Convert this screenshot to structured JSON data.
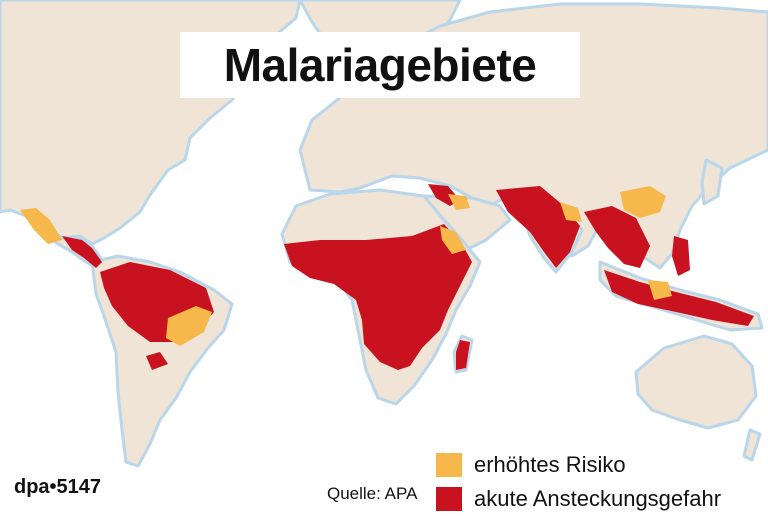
{
  "title": "Malariagebiete",
  "legend": {
    "items": [
      {
        "label": "erhöhtes Risiko",
        "color": "#f6b84a"
      },
      {
        "label": "akute Ansteckungsgefahr",
        "color": "#c8121f"
      }
    ]
  },
  "source": "Quelle: APA",
  "credit": "dpa•5147",
  "colors": {
    "ocean": "#ffffff",
    "land": "#efe4d6",
    "coast": "#b9d6ea",
    "border": "#ffffff",
    "risk": "#f6b84a",
    "acute": "#c8121f"
  }
}
